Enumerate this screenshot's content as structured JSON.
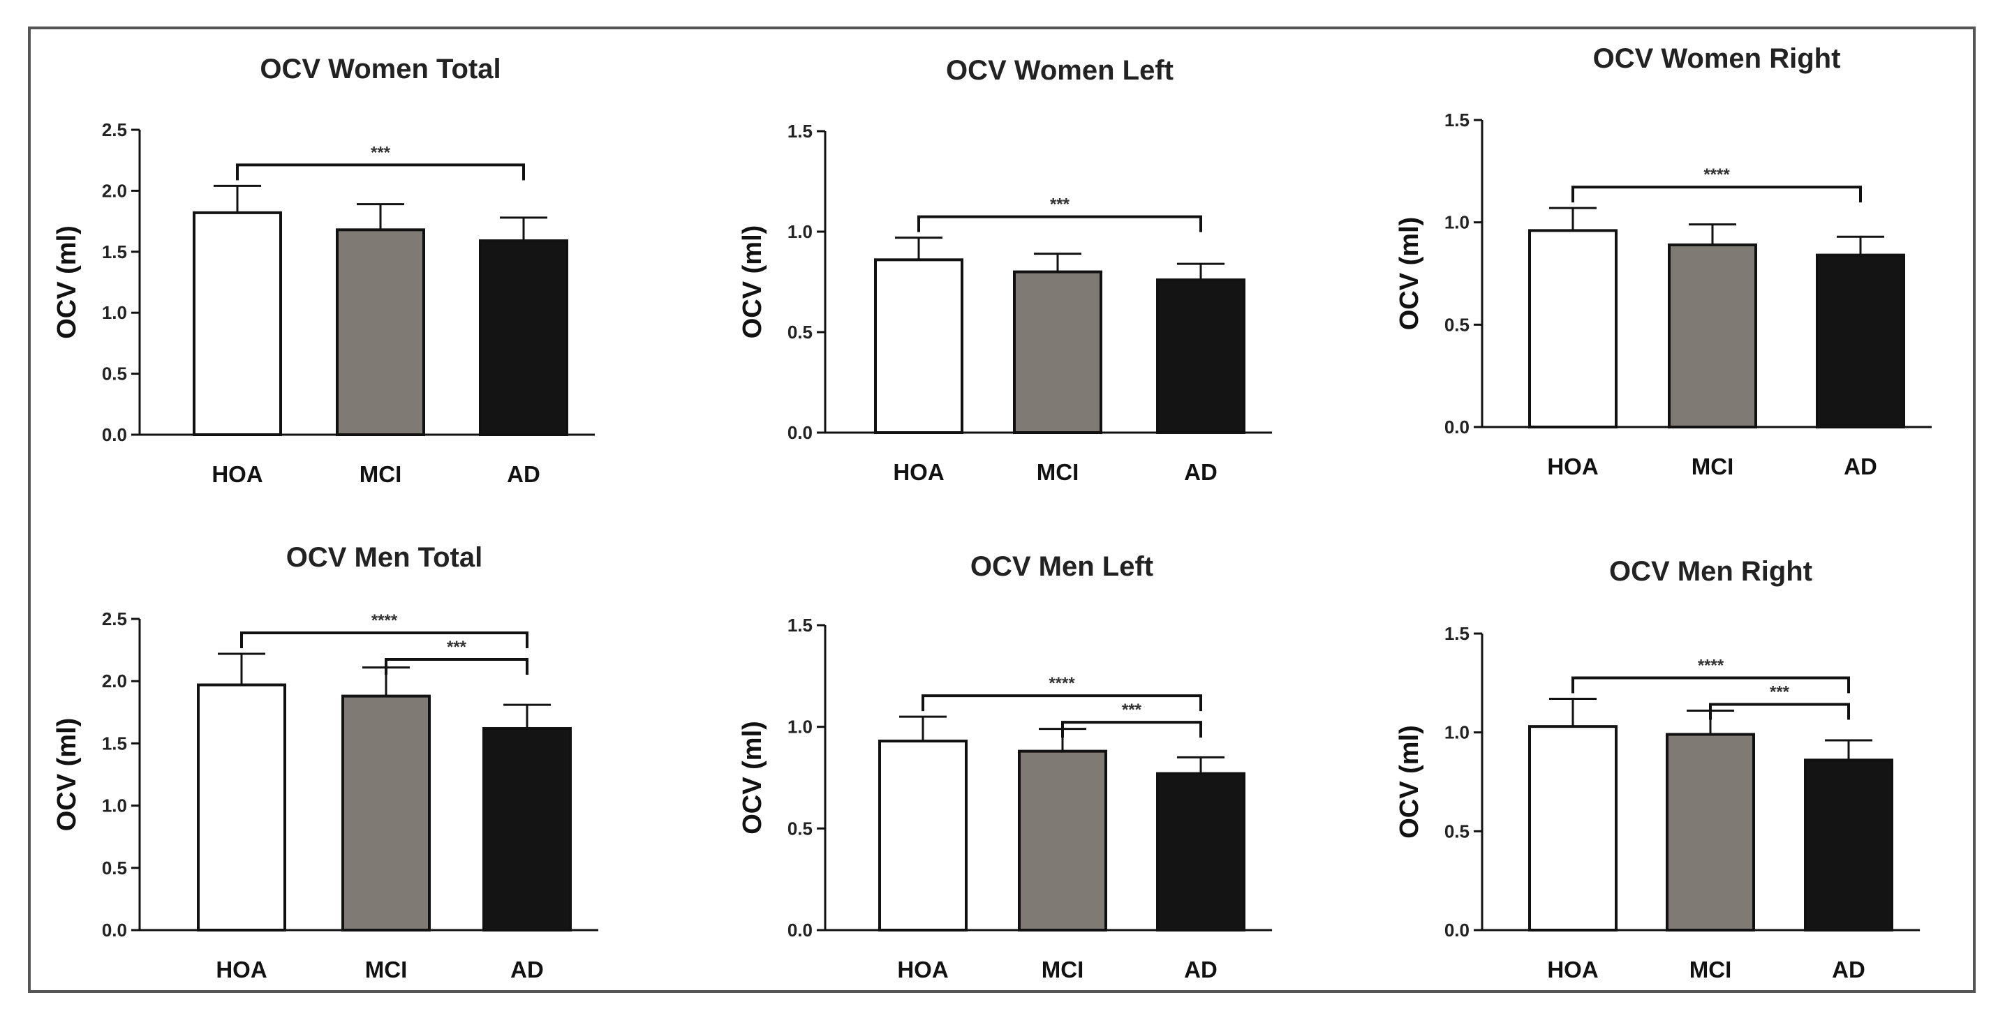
{
  "colors": {
    "HOA": "#ffffff",
    "MCI": "#807a75",
    "AD": "#141414",
    "axis": "#111111"
  },
  "chart_data": [
    {
      "type": "bar",
      "title": "OCV Women Total",
      "ylabel": "OCV (ml)",
      "xlabel": "",
      "categories": [
        "HOA",
        "MCI",
        "AD"
      ],
      "values": [
        1.82,
        1.68,
        1.59
      ],
      "errors": [
        0.22,
        0.21,
        0.19
      ],
      "ylim": [
        0,
        2.5
      ],
      "yticks": [
        "0.0",
        "0.5",
        "1.0",
        "1.5",
        "2.0",
        "2.5"
      ],
      "brackets": [
        {
          "from": "HOA",
          "to": "AD",
          "label": "***"
        }
      ]
    },
    {
      "type": "bar",
      "title": "OCV Women Left",
      "ylabel": "OCV (ml)",
      "xlabel": "",
      "categories": [
        "HOA",
        "MCI",
        "AD"
      ],
      "values": [
        0.86,
        0.8,
        0.76
      ],
      "errors": [
        0.11,
        0.09,
        0.08
      ],
      "ylim": [
        0,
        1.5
      ],
      "yticks": [
        "0.0",
        "0.5",
        "1.0",
        "1.5"
      ],
      "brackets": [
        {
          "from": "HOA",
          "to": "AD",
          "label": "***"
        }
      ]
    },
    {
      "type": "bar",
      "title": "OCV Women Right",
      "ylabel": "OCV (ml)",
      "xlabel": "",
      "categories": [
        "HOA",
        "MCI",
        "AD"
      ],
      "values": [
        0.96,
        0.89,
        0.84
      ],
      "errors": [
        0.11,
        0.1,
        0.09
      ],
      "ylim": [
        0,
        1.5
      ],
      "yticks": [
        "0.0",
        "0.5",
        "1.0",
        "1.5"
      ],
      "brackets": [
        {
          "from": "HOA",
          "to": "AD",
          "label": "****"
        }
      ]
    },
    {
      "type": "bar",
      "title": "OCV Men Total",
      "ylabel": "OCV (ml)",
      "xlabel": "",
      "categories": [
        "HOA",
        "MCI",
        "AD"
      ],
      "values": [
        1.97,
        1.88,
        1.62
      ],
      "errors": [
        0.25,
        0.23,
        0.19
      ],
      "ylim": [
        0,
        2.5
      ],
      "yticks": [
        "0.0",
        "0.5",
        "1.0",
        "1.5",
        "2.0",
        "2.5"
      ],
      "brackets": [
        {
          "from": "HOA",
          "to": "AD",
          "label": "****"
        },
        {
          "from": "MCI",
          "to": "AD",
          "label": "***"
        }
      ]
    },
    {
      "type": "bar",
      "title": "OCV Men Left",
      "ylabel": "OCV (ml)",
      "xlabel": "",
      "categories": [
        "HOA",
        "MCI",
        "AD"
      ],
      "values": [
        0.93,
        0.88,
        0.77
      ],
      "errors": [
        0.12,
        0.11,
        0.08
      ],
      "ylim": [
        0,
        1.5
      ],
      "yticks": [
        "0.0",
        "0.5",
        "1.0",
        "1.5"
      ],
      "brackets": [
        {
          "from": "HOA",
          "to": "AD",
          "label": "****"
        },
        {
          "from": "MCI",
          "to": "AD",
          "label": "***"
        }
      ]
    },
    {
      "type": "bar",
      "title": "OCV Men Right",
      "ylabel": "OCV (ml)",
      "xlabel": "",
      "categories": [
        "HOA",
        "MCI",
        "AD"
      ],
      "values": [
        1.03,
        0.99,
        0.86
      ],
      "errors": [
        0.14,
        0.12,
        0.1
      ],
      "ylim": [
        0,
        1.5
      ],
      "yticks": [
        "0.0",
        "0.5",
        "1.0",
        "1.5"
      ],
      "brackets": [
        {
          "from": "HOA",
          "to": "AD",
          "label": "****"
        },
        {
          "from": "MCI",
          "to": "AD",
          "label": "***"
        }
      ]
    }
  ]
}
